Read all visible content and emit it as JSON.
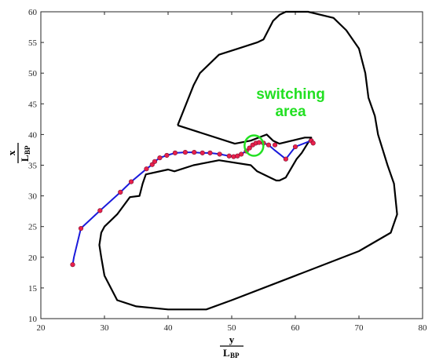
{
  "chart_data": {
    "type": "line",
    "title": "",
    "xlabel": {
      "numerator": "y",
      "denominator_main": "L",
      "denominator_sub": "BP"
    },
    "ylabel": {
      "numerator": "x",
      "denominator_main": "L",
      "denominator_sub": "BP"
    },
    "xlim": [
      20,
      80
    ],
    "ylim": [
      10,
      60
    ],
    "xticks": [
      "20",
      "30",
      "40",
      "50",
      "60",
      "70",
      "80"
    ],
    "yticks": [
      "10",
      "15",
      "20",
      "25",
      "30",
      "35",
      "40",
      "45",
      "50",
      "55",
      "60"
    ],
    "grid": false,
    "colors": {
      "boundary": "#000000",
      "trajectory": "#1a1adb",
      "points": "#e8204c",
      "switching": "#22e022"
    },
    "series": [
      {
        "kind": "boundary-outline",
        "x": [
          41.5,
          50.5,
          53,
          55.5,
          56.5,
          57.5,
          61.5,
          62.5,
          61,
          60.2,
          58.5,
          57.5,
          57,
          56,
          54,
          53,
          48,
          44,
          41,
          40,
          36.5,
          36,
          35.5,
          34,
          32,
          31,
          30,
          29.5,
          29.2,
          29.5,
          30,
          32,
          35,
          40,
          46,
          50,
          60,
          70,
          75,
          76,
          75.5,
          74.5,
          73,
          72.5,
          71.5,
          71,
          70,
          68,
          66,
          62,
          58.5,
          57.5,
          56.5,
          55,
          54,
          51,
          48,
          45,
          44,
          41.5
        ],
        "y": [
          41.5,
          38.5,
          39,
          40,
          39,
          38.5,
          39.5,
          39.5,
          37,
          36,
          33,
          32.5,
          32.5,
          33,
          34,
          35,
          35.8,
          35,
          34,
          34.3,
          33.5,
          32,
          30,
          29.8,
          27,
          26,
          25,
          24,
          22,
          20,
          17,
          13,
          12,
          11.5,
          11.5,
          13,
          17,
          21,
          24,
          27,
          32,
          35,
          40,
          43,
          46,
          50,
          54,
          57,
          59,
          60,
          60,
          59.5,
          58.5,
          55.5,
          55,
          54,
          53,
          50,
          48,
          41.5
        ]
      },
      {
        "kind": "trajectory",
        "x": [
          25,
          25.2,
          26.3,
          29.3,
          32.5,
          34.2,
          36.6,
          37.5,
          37.9,
          38.7,
          39.8,
          41.1,
          42.7,
          44.1,
          45.4,
          46.6,
          48.1,
          49.6,
          50.6,
          51.5,
          52.3,
          52.8,
          53.3,
          53.8,
          54.3,
          55.0,
          55.8,
          56.8,
          58.5,
          60,
          62.5,
          62.8
        ],
        "y": [
          18.8,
          20,
          24.7,
          27.6,
          30.6,
          32.3,
          34.4,
          35.1,
          35.6,
          36.2,
          36.6,
          37.0,
          37.1,
          37.1,
          37.0,
          37.0,
          36.8,
          36.5,
          36.5,
          36.8,
          37.3,
          37.8,
          38.3,
          38.6,
          38.7,
          38.6,
          38.3,
          37.4,
          36,
          38,
          39,
          38.6
        ]
      },
      {
        "kind": "points",
        "x": [
          25,
          26.3,
          29.3,
          32.5,
          34.2,
          36.6,
          37.5,
          37.9,
          38.7,
          39.8,
          41.1,
          42.7,
          44.1,
          45.4,
          46.6,
          48.1,
          49.6,
          50.3,
          50.9,
          51.5,
          52.3,
          52.8,
          53.3,
          53.8,
          54.3,
          55.0,
          55.8,
          56.8,
          58.5,
          60,
          62.5,
          62.8
        ],
        "y": [
          18.8,
          24.7,
          27.6,
          30.6,
          32.3,
          34.4,
          35.1,
          35.6,
          36.2,
          36.6,
          37.0,
          37.1,
          37.1,
          37.0,
          37.0,
          36.8,
          36.5,
          36.4,
          36.5,
          36.8,
          37.3,
          37.8,
          38.3,
          38.6,
          38.7,
          38.6,
          38.3,
          38.3,
          36,
          38,
          39,
          38.6
        ]
      }
    ],
    "annotation": {
      "lines": [
        "switching",
        "area"
      ],
      "circle_center": [
        53.5,
        38.2
      ]
    }
  }
}
